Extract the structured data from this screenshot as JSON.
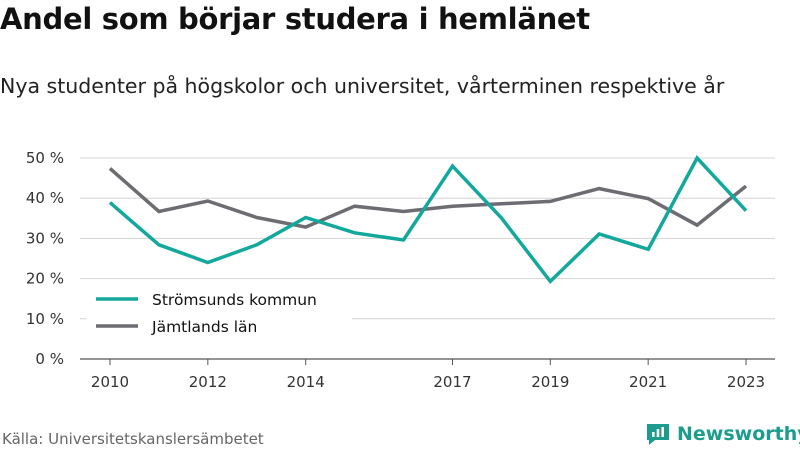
{
  "title": "Andel som börjar studera i hemlänet",
  "subtitle": "Nya studenter på högskolor och universitet, vårterminen respektive år",
  "source": "Källa: Universitetskanslersämbetet",
  "brand": {
    "name": "Newsworthy",
    "icon": "newsworthy-logo-icon",
    "color": "#1b9c8c"
  },
  "chart_data": {
    "type": "line",
    "x": [
      2010,
      2011,
      2012,
      2013,
      2014,
      2015,
      2016,
      2017,
      2018,
      2019,
      2020,
      2021,
      2022,
      2023
    ],
    "xticks": [
      2010,
      2012,
      2014,
      2017,
      2019,
      2021,
      2023
    ],
    "xtick_labels": [
      "2010",
      "2012",
      "2014",
      "2017",
      "2019",
      "2021",
      "2023"
    ],
    "xlim": [
      2010,
      2023
    ],
    "ylim": [
      0,
      50
    ],
    "yticks": [
      0,
      10,
      20,
      30,
      40,
      50
    ],
    "ytick_labels": [
      "0 %",
      "10 %",
      "20 %",
      "30 %",
      "40 %",
      "50 %"
    ],
    "y_unit": "%",
    "grid": true,
    "legend_position": "bottom-left",
    "series": [
      {
        "name": "Strömsunds kommun",
        "color": "#13a89c",
        "values": [
          38.9,
          28.4,
          24.0,
          28.4,
          35.2,
          31.4,
          29.6,
          48.0,
          35.1,
          19.3,
          31.1,
          27.3,
          50.0,
          36.9
        ]
      },
      {
        "name": "Jämtlands län",
        "color": "#6c6c72",
        "values": [
          47.4,
          36.7,
          39.3,
          35.2,
          32.8,
          38.0,
          36.7,
          38.0,
          38.6,
          39.2,
          42.4,
          39.9,
          33.3,
          43.0
        ]
      }
    ]
  }
}
